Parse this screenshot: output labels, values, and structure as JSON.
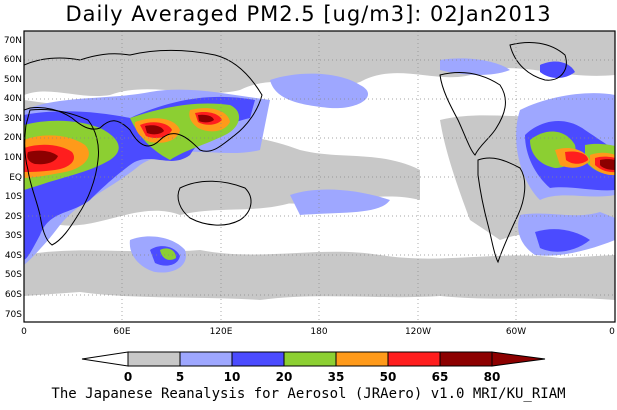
{
  "title": "Daily Averaged PM2.5 [ug/m3]: 02Jan2013",
  "footer": "The Japanese Reanalysis for Aerosol (JRAero) v1.0 MRI/KU_RIAM",
  "map": {
    "lat_labels": [
      "70N",
      "60N",
      "50N",
      "40N",
      "30N",
      "20N",
      "10N",
      "EQ",
      "10S",
      "20S",
      "30S",
      "40S",
      "50S",
      "60S",
      "70S"
    ],
    "lon_labels": [
      "0",
      "60E",
      "120E",
      "180",
      "120W",
      "60W",
      "0"
    ]
  },
  "colorbar": {
    "levels": [
      "0",
      "5",
      "10",
      "20",
      "35",
      "50",
      "65",
      "80"
    ],
    "colors": [
      "#ffffff",
      "#c8c8c8",
      "#9ea7ff",
      "#4b4bff",
      "#8ccf32",
      "#ff9a1a",
      "#ff1e1e",
      "#8c0000"
    ]
  }
}
